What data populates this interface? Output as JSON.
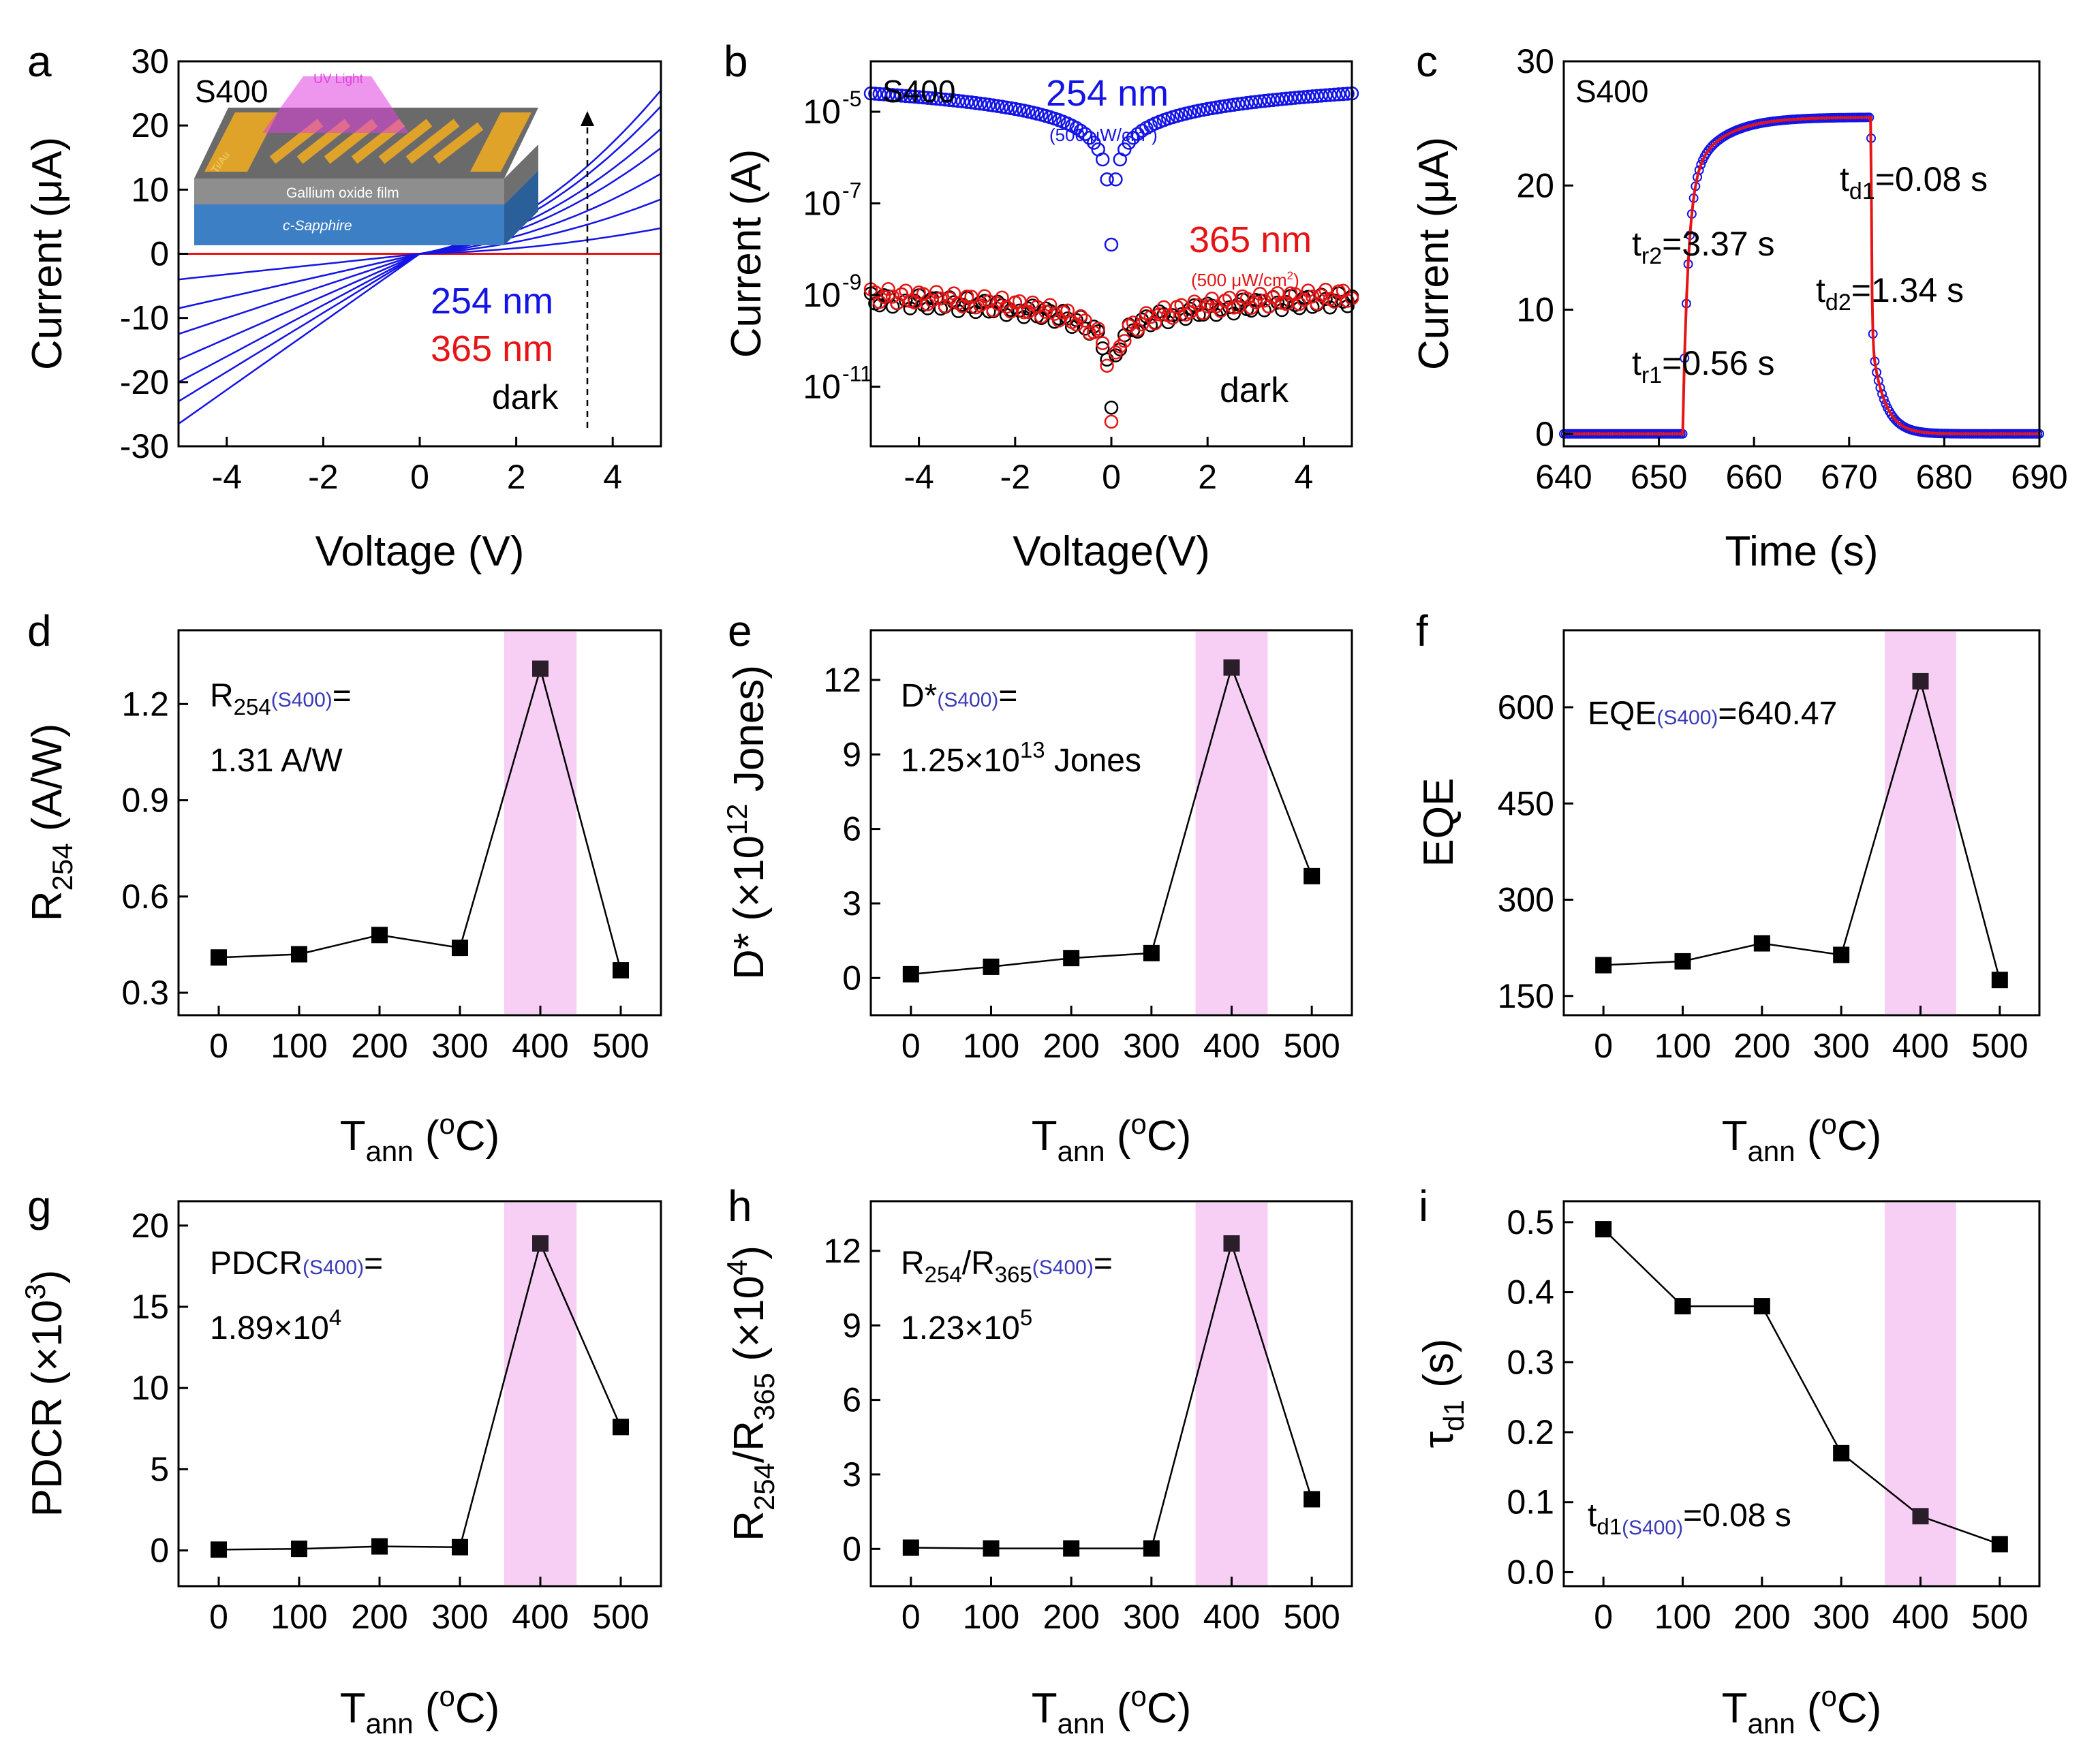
{
  "colors": {
    "blue": "#1414e6",
    "red": "#e61414",
    "black": "#000000",
    "pink": "#f6bff0",
    "accent": "#3a3ab8"
  },
  "chart_data": [
    {
      "id": "a",
      "type": "line",
      "panel_label": "a",
      "sample_label": "S400",
      "xlabel": "Voltage (V)",
      "ylabel": "Current (μA)",
      "xlim": [
        -5,
        5
      ],
      "ylim": [
        -30,
        30
      ],
      "xticks": [
        -4,
        -2,
        0,
        2,
        4
      ],
      "yticks": [
        -30,
        -20,
        -10,
        0,
        10,
        20,
        30
      ],
      "series_254nm": [
        {
          "name": "254 nm curve 1",
          "neg_end": -4.0,
          "pos_end": 4.0
        },
        {
          "name": "254 nm curve 2",
          "neg_end": -8.5,
          "pos_end": 8.5
        },
        {
          "name": "254 nm curve 3",
          "neg_end": -12.5,
          "pos_end": 12.5
        },
        {
          "name": "254 nm curve 4",
          "neg_end": -16.5,
          "pos_end": 16.5
        },
        {
          "name": "254 nm curve 5",
          "neg_end": -20.0,
          "pos_end": 19.5
        },
        {
          "name": "254 nm curve 6",
          "neg_end": -23.0,
          "pos_end": 23.0
        },
        {
          "name": "254 nm curve 7",
          "neg_end": -26.5,
          "pos_end": 25.5
        }
      ],
      "red_line": {
        "name": "365 nm",
        "value": 0
      },
      "legend": [
        "254 nm",
        "365 nm",
        "dark"
      ],
      "inset": {
        "top": "UV  Light",
        "electrode": "Ti/Au",
        "film": "Gallium oxide film",
        "substrate": "c-Sapphire"
      }
    },
    {
      "id": "b",
      "type": "scatter",
      "panel_label": "b",
      "sample_label": "S400",
      "xlabel": "Voltage(V)",
      "ylabel": "Current (A)",
      "yscale": "log",
      "xlim": [
        -5,
        5
      ],
      "ylim_log10": [
        -12.3,
        -3.9
      ],
      "xticks": [
        -4,
        -2,
        0,
        2,
        4
      ],
      "yticks_log10": [
        -11,
        -9,
        -7,
        -5
      ],
      "ytick_labels": [
        {
          "base": "10",
          "exp": "-11"
        },
        {
          "base": "10",
          "exp": "-9"
        },
        {
          "base": "10",
          "exp": "-7"
        },
        {
          "base": "10",
          "exp": "-5"
        }
      ],
      "series": [
        {
          "name": "254 nm",
          "detail": "(500 μW/cm²)",
          "color": "blue",
          "log10_at_edge": -4.6,
          "log10_at_min": -7.9
        },
        {
          "name": "365 nm",
          "detail": "(500 μW/cm²)",
          "color": "red",
          "log10_at_edge": -9.0,
          "log10_at_min": -11.8
        },
        {
          "name": "dark",
          "color": "black",
          "log10_at_edge": -9.1,
          "log10_at_min": -11.6
        }
      ],
      "annotations": {
        "blue_label": "254 nm",
        "blue_sub": "(500 μW/cm",
        "red_label": "365 nm",
        "red_sub": "(500 μW/cm",
        "sup2": "2",
        "close": ")",
        "dark_label": "dark"
      }
    },
    {
      "id": "c",
      "type": "line",
      "panel_label": "c",
      "sample_label": "S400",
      "xlabel": "Time (s)",
      "ylabel": "Current (μA)",
      "xlim": [
        640,
        690
      ],
      "ylim": [
        -1,
        30
      ],
      "xticks": [
        640,
        650,
        660,
        670,
        680,
        690
      ],
      "yticks": [
        0,
        10,
        20,
        30
      ],
      "on_time": 652.5,
      "off_time": 672.3,
      "plateau": 25.5,
      "annotations": {
        "td1": "=0.08 s",
        "tr2": "=3.37 s",
        "td2": "=1.34 s",
        "tr1": "=0.56 s"
      }
    },
    {
      "id": "d",
      "type": "line",
      "panel_label": "d",
      "x": [
        0,
        100,
        200,
        300,
        400,
        500
      ],
      "values": [
        0.41,
        0.42,
        0.48,
        0.44,
        1.31,
        0.37
      ],
      "xlim": [
        -50,
        550
      ],
      "ylim": [
        0.23,
        1.43
      ],
      "yticks": [
        0.3,
        0.6,
        0.9,
        1.2
      ],
      "ytick_labels": [
        "0.3",
        "0.6",
        "0.9",
        "1.2"
      ],
      "ylabel": "R254 (A/W)",
      "xlabel": "Tann (oC)",
      "annotation": {
        "line1": "R",
        "sub": "254",
        "sample": "(S400)",
        "tail": "=",
        "line2": "1.31 A/W"
      }
    },
    {
      "id": "e",
      "type": "line",
      "panel_label": "e",
      "x": [
        0,
        100,
        200,
        300,
        400,
        500
      ],
      "values": [
        0.15,
        0.45,
        0.8,
        1.0,
        12.5,
        4.1
      ],
      "xlim": [
        -50,
        550
      ],
      "ylim": [
        -1.5,
        14.0
      ],
      "yticks": [
        0,
        3,
        6,
        9,
        12
      ],
      "ytick_labels": [
        "0",
        "3",
        "6",
        "9",
        "12"
      ],
      "ylabel": "D* (×10^12 Jones)",
      "xlabel": "Tann (oC)",
      "annotation": {
        "line1": "D*",
        "sample": "(S400)",
        "tail": "=",
        "line2": "1.25×10",
        "exp": "13",
        "unit": " Jones"
      }
    },
    {
      "id": "f",
      "type": "line",
      "panel_label": "f",
      "x": [
        0,
        100,
        200,
        300,
        400,
        500
      ],
      "values": [
        198,
        204,
        232,
        214,
        640.47,
        175
      ],
      "xlim": [
        -50,
        550
      ],
      "ylim": [
        120,
        720
      ],
      "yticks": [
        150,
        300,
        450,
        600
      ],
      "ytick_labels": [
        "150",
        "300",
        "450",
        "600"
      ],
      "ylabel": "EQE",
      "xlabel": "Tann (oC)",
      "annotation": {
        "line1": "EQE",
        "sample": "(S400)",
        "tail": "=640.47"
      }
    },
    {
      "id": "g",
      "type": "line",
      "panel_label": "g",
      "x": [
        0,
        100,
        200,
        300,
        400,
        500
      ],
      "values": [
        0.05,
        0.1,
        0.25,
        0.2,
        18.9,
        7.6
      ],
      "xlim": [
        -50,
        550
      ],
      "ylim": [
        -2.2,
        21.5
      ],
      "yticks": [
        0,
        5,
        10,
        15,
        20
      ],
      "ytick_labels": [
        "0",
        "5",
        "10",
        "15",
        "20"
      ],
      "ylabel": "PDCR (×10^3)",
      "xlabel": "Tann (oC)",
      "annotation": {
        "line1": "PDCR",
        "sample": "(S400)",
        "tail": "=",
        "line2": "1.89×10",
        "exp": "4"
      }
    },
    {
      "id": "h",
      "type": "line",
      "panel_label": "h",
      "x": [
        0,
        100,
        200,
        300,
        400,
        500
      ],
      "values": [
        0.05,
        0.02,
        0.02,
        0.02,
        12.3,
        2.0
      ],
      "xlim": [
        -50,
        550
      ],
      "ylim": [
        -1.5,
        14.0
      ],
      "yticks": [
        0,
        3,
        6,
        9,
        12
      ],
      "ytick_labels": [
        "0",
        "3",
        "6",
        "9",
        "12"
      ],
      "ylabel": "R254/R365 (×10^4)",
      "xlabel": "Tann (oC)",
      "annotation": {
        "line1": "R",
        "sub1": "254",
        "mid": "/R",
        "sub2": "365",
        "sample": "(S400)",
        "tail": "=",
        "line2": "1.23×10",
        "exp": "5"
      }
    },
    {
      "id": "i",
      "type": "line",
      "panel_label": "i",
      "x": [
        0,
        100,
        200,
        300,
        400,
        500
      ],
      "values": [
        0.49,
        0.38,
        0.38,
        0.17,
        0.08,
        0.04
      ],
      "xlim": [
        -50,
        550
      ],
      "ylim": [
        -0.02,
        0.53
      ],
      "yticks": [
        0,
        0.1,
        0.2,
        0.3,
        0.4,
        0.5
      ],
      "ytick_labels": [
        "0.0",
        "0.1",
        "0.2",
        "0.3",
        "0.4",
        "0.5"
      ],
      "ylabel": "τd1 (s)",
      "xlabel": "Tann (oC)",
      "annotation": {
        "line1": "t",
        "sub": "d1",
        "sample": "(S400)",
        "tail": "=0.08 s"
      }
    }
  ],
  "common_xticks": [
    "0",
    "100",
    "200",
    "300",
    "400",
    "500"
  ],
  "xlabel_parts": {
    "T": "T",
    "sub": "ann",
    "open": " (",
    "sup": "o",
    "close": "C)"
  },
  "axis_parts": {
    "R": "R",
    "r254": "254",
    "unitAW": " (A/W)",
    "Dstar": "D* (×10",
    "exp12": "12",
    "jones": " Jones)",
    "eqe": "EQE",
    "pdcr": "PDCR (×10",
    "exp3": "3",
    "paren": ")",
    "slash": "/R",
    "r365": "365",
    "times": " (×10",
    "exp4": "4",
    "tau": "τ",
    "d1": "d1",
    "secs": " (s)"
  },
  "c_labels": {
    "t": "t",
    "d1": "d1",
    "r2": "r2",
    "d2": "d2",
    "r1": "r1"
  }
}
